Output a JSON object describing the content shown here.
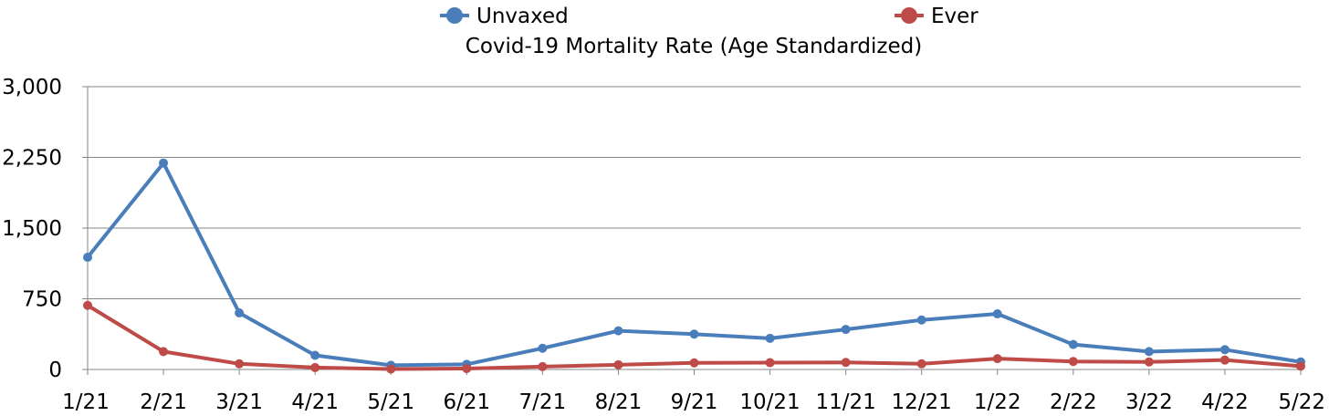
{
  "chart_data": {
    "type": "line",
    "title": "Covid-19 Mortality Rate (Age Standardized)",
    "xlabel": "",
    "ylabel": "",
    "categories": [
      "1/21",
      "2/21",
      "3/21",
      "4/21",
      "5/21",
      "6/21",
      "7/21",
      "8/21",
      "9/21",
      "10/21",
      "11/21",
      "12/21",
      "1/22",
      "2/22",
      "3/22",
      "4/22",
      "5/22"
    ],
    "series": [
      {
        "name": "Unvaxed",
        "color": "#4a7ebb",
        "values": [
          1190,
          2190,
          600,
          150,
          45,
          55,
          225,
          410,
          375,
          330,
          425,
          525,
          590,
          265,
          190,
          210,
          80
        ]
      },
      {
        "name": "Ever",
        "color": "#be4b48",
        "values": [
          680,
          190,
          60,
          20,
          5,
          10,
          30,
          50,
          70,
          72,
          75,
          60,
          115,
          85,
          80,
          100,
          35
        ]
      }
    ],
    "ylim": [
      0,
      3000
    ],
    "yticks": [
      0,
      750,
      1500,
      2250,
      3000
    ],
    "ytick_labels": [
      "0",
      "750",
      "1,500",
      "2,250",
      "3,000"
    ],
    "grid": true,
    "legend_position": "top"
  }
}
